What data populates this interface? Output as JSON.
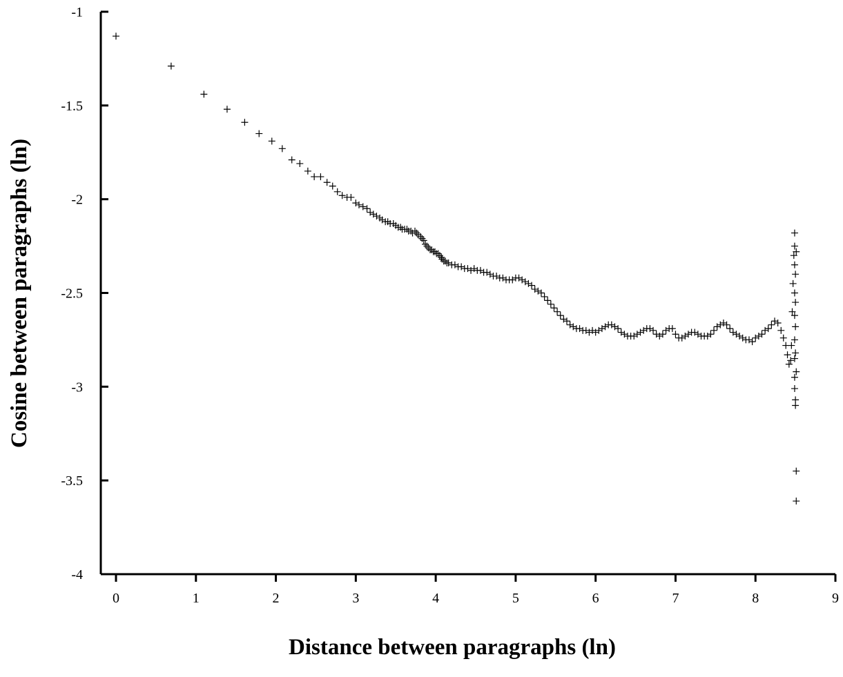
{
  "chart_data": {
    "type": "scatter",
    "title": "",
    "xlabel": "Distance  between  paragraphs  (ln)",
    "ylabel": "Cosine  between  paragraphs  (ln)",
    "xlim": [
      0,
      9
    ],
    "ylim": [
      -4,
      -1
    ],
    "xticks": [
      "0",
      "1",
      "2",
      "3",
      "4",
      "5",
      "6",
      "7",
      "8",
      "9"
    ],
    "yticks": [
      "-1",
      "-1.5",
      "-2",
      "-2.5",
      "-3",
      "-3.5",
      "-4"
    ],
    "marker": "plus",
    "grid": false,
    "legend": "none",
    "points": [
      [
        0.0,
        -1.13
      ],
      [
        0.69,
        -1.29
      ],
      [
        1.1,
        -1.44
      ],
      [
        1.39,
        -1.52
      ],
      [
        1.61,
        -1.59
      ],
      [
        1.79,
        -1.65
      ],
      [
        1.95,
        -1.69
      ],
      [
        2.08,
        -1.73
      ],
      [
        2.2,
        -1.79
      ],
      [
        2.3,
        -1.81
      ],
      [
        2.4,
        -1.85
      ],
      [
        2.48,
        -1.88
      ],
      [
        2.56,
        -1.88
      ],
      [
        2.64,
        -1.91
      ],
      [
        2.71,
        -1.93
      ],
      [
        2.77,
        -1.96
      ],
      [
        2.83,
        -1.98
      ],
      [
        2.89,
        -1.99
      ],
      [
        2.94,
        -1.99
      ],
      [
        3.0,
        -2.02
      ],
      [
        3.04,
        -2.03
      ],
      [
        3.09,
        -2.04
      ],
      [
        3.14,
        -2.05
      ],
      [
        3.18,
        -2.07
      ],
      [
        3.22,
        -2.08
      ],
      [
        3.26,
        -2.09
      ],
      [
        3.3,
        -2.1
      ],
      [
        3.33,
        -2.11
      ],
      [
        3.37,
        -2.12
      ],
      [
        3.4,
        -2.12
      ],
      [
        3.43,
        -2.13
      ],
      [
        3.47,
        -2.13
      ],
      [
        3.5,
        -2.14
      ],
      [
        3.53,
        -2.15
      ],
      [
        3.56,
        -2.15
      ],
      [
        3.58,
        -2.16
      ],
      [
        3.61,
        -2.16
      ],
      [
        3.64,
        -2.16
      ],
      [
        3.66,
        -2.17
      ],
      [
        3.69,
        -2.17
      ],
      [
        3.71,
        -2.18
      ],
      [
        3.74,
        -2.17
      ],
      [
        3.76,
        -2.18
      ],
      [
        3.78,
        -2.19
      ],
      [
        3.81,
        -2.2
      ],
      [
        3.83,
        -2.21
      ],
      [
        3.85,
        -2.22
      ],
      [
        3.87,
        -2.24
      ],
      [
        3.89,
        -2.25
      ],
      [
        3.91,
        -2.26
      ],
      [
        3.93,
        -2.27
      ],
      [
        3.95,
        -2.27
      ],
      [
        3.97,
        -2.28
      ],
      [
        3.99,
        -2.28
      ],
      [
        4.01,
        -2.29
      ],
      [
        4.03,
        -2.29
      ],
      [
        4.05,
        -2.3
      ],
      [
        4.07,
        -2.31
      ],
      [
        4.08,
        -2.32
      ],
      [
        4.1,
        -2.33
      ],
      [
        4.12,
        -2.33
      ],
      [
        4.14,
        -2.34
      ],
      [
        4.16,
        -2.34
      ],
      [
        4.2,
        -2.35
      ],
      [
        4.24,
        -2.35
      ],
      [
        4.28,
        -2.36
      ],
      [
        4.32,
        -2.36
      ],
      [
        4.36,
        -2.37
      ],
      [
        4.4,
        -2.37
      ],
      [
        4.44,
        -2.38
      ],
      [
        4.48,
        -2.37
      ],
      [
        4.52,
        -2.38
      ],
      [
        4.56,
        -2.38
      ],
      [
        4.6,
        -2.39
      ],
      [
        4.64,
        -2.39
      ],
      [
        4.68,
        -2.4
      ],
      [
        4.72,
        -2.41
      ],
      [
        4.76,
        -2.41
      ],
      [
        4.8,
        -2.42
      ],
      [
        4.84,
        -2.42
      ],
      [
        4.88,
        -2.43
      ],
      [
        4.92,
        -2.43
      ],
      [
        4.96,
        -2.43
      ],
      [
        5.0,
        -2.42
      ],
      [
        5.04,
        -2.42
      ],
      [
        5.08,
        -2.43
      ],
      [
        5.12,
        -2.44
      ],
      [
        5.16,
        -2.45
      ],
      [
        5.2,
        -2.46
      ],
      [
        5.24,
        -2.48
      ],
      [
        5.28,
        -2.49
      ],
      [
        5.32,
        -2.5
      ],
      [
        5.36,
        -2.52
      ],
      [
        5.4,
        -2.54
      ],
      [
        5.44,
        -2.56
      ],
      [
        5.48,
        -2.58
      ],
      [
        5.52,
        -2.6
      ],
      [
        5.56,
        -2.62
      ],
      [
        5.6,
        -2.64
      ],
      [
        5.64,
        -2.65
      ],
      [
        5.68,
        -2.67
      ],
      [
        5.72,
        -2.68
      ],
      [
        5.76,
        -2.69
      ],
      [
        5.8,
        -2.69
      ],
      [
        5.84,
        -2.7
      ],
      [
        5.88,
        -2.7
      ],
      [
        5.92,
        -2.71
      ],
      [
        5.96,
        -2.7
      ],
      [
        6.0,
        -2.71
      ],
      [
        6.04,
        -2.7
      ],
      [
        6.08,
        -2.69
      ],
      [
        6.12,
        -2.68
      ],
      [
        6.16,
        -2.67
      ],
      [
        6.2,
        -2.67
      ],
      [
        6.24,
        -2.68
      ],
      [
        6.28,
        -2.69
      ],
      [
        6.32,
        -2.71
      ],
      [
        6.36,
        -2.72
      ],
      [
        6.4,
        -2.73
      ],
      [
        6.44,
        -2.73
      ],
      [
        6.48,
        -2.73
      ],
      [
        6.52,
        -2.72
      ],
      [
        6.56,
        -2.71
      ],
      [
        6.6,
        -2.7
      ],
      [
        6.64,
        -2.69
      ],
      [
        6.68,
        -2.69
      ],
      [
        6.72,
        -2.7
      ],
      [
        6.76,
        -2.72
      ],
      [
        6.8,
        -2.73
      ],
      [
        6.84,
        -2.72
      ],
      [
        6.88,
        -2.7
      ],
      [
        6.92,
        -2.69
      ],
      [
        6.96,
        -2.69
      ],
      [
        7.0,
        -2.72
      ],
      [
        7.04,
        -2.74
      ],
      [
        7.08,
        -2.74
      ],
      [
        7.12,
        -2.73
      ],
      [
        7.16,
        -2.72
      ],
      [
        7.2,
        -2.71
      ],
      [
        7.24,
        -2.71
      ],
      [
        7.28,
        -2.72
      ],
      [
        7.32,
        -2.73
      ],
      [
        7.36,
        -2.73
      ],
      [
        7.4,
        -2.73
      ],
      [
        7.44,
        -2.72
      ],
      [
        7.48,
        -2.7
      ],
      [
        7.52,
        -2.68
      ],
      [
        7.56,
        -2.67
      ],
      [
        7.6,
        -2.66
      ],
      [
        7.64,
        -2.67
      ],
      [
        7.68,
        -2.69
      ],
      [
        7.72,
        -2.71
      ],
      [
        7.76,
        -2.72
      ],
      [
        7.8,
        -2.73
      ],
      [
        7.84,
        -2.74
      ],
      [
        7.88,
        -2.75
      ],
      [
        7.92,
        -2.75
      ],
      [
        7.96,
        -2.76
      ],
      [
        8.0,
        -2.74
      ],
      [
        8.04,
        -2.73
      ],
      [
        8.08,
        -2.72
      ],
      [
        8.12,
        -2.7
      ],
      [
        8.16,
        -2.69
      ],
      [
        8.2,
        -2.67
      ],
      [
        8.24,
        -2.65
      ],
      [
        8.28,
        -2.66
      ],
      [
        8.32,
        -2.7
      ],
      [
        8.35,
        -2.74
      ],
      [
        8.38,
        -2.78
      ],
      [
        8.4,
        -2.83
      ],
      [
        8.42,
        -2.88
      ],
      [
        8.44,
        -2.86
      ],
      [
        8.45,
        -2.78
      ],
      [
        8.46,
        -2.6
      ],
      [
        8.47,
        -2.45
      ],
      [
        8.48,
        -2.3
      ],
      [
        8.49,
        -2.25
      ],
      [
        8.49,
        -2.18
      ],
      [
        8.49,
        -2.35
      ],
      [
        8.49,
        -2.5
      ],
      [
        8.49,
        -2.62
      ],
      [
        8.49,
        -2.75
      ],
      [
        8.49,
        -2.85
      ],
      [
        8.49,
        -2.95
      ],
      [
        8.49,
        -3.01
      ],
      [
        8.5,
        -3.07
      ],
      [
        8.5,
        -3.1
      ],
      [
        8.5,
        -2.4
      ],
      [
        8.5,
        -2.55
      ],
      [
        8.5,
        -2.68
      ],
      [
        8.5,
        -2.82
      ],
      [
        8.51,
        -2.92
      ],
      [
        8.51,
        -2.28
      ],
      [
        8.51,
        -3.45
      ],
      [
        8.51,
        -3.61
      ]
    ]
  }
}
